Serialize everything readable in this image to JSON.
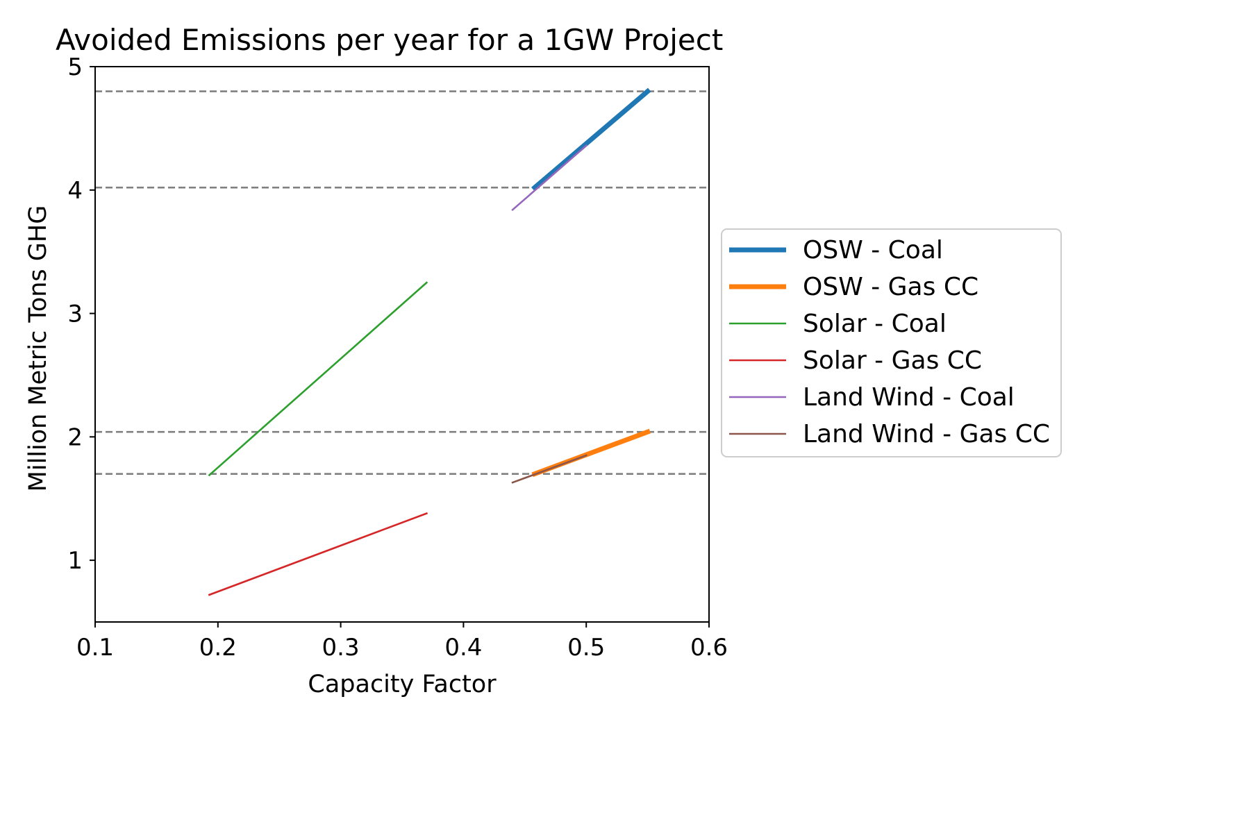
{
  "chart_data": {
    "type": "line",
    "title": "Avoided Emissions per year for a 1GW Project",
    "xlabel": "Capacity Factor",
    "ylabel": "Million Metric Tons GHG",
    "xlim": [
      0.1,
      0.6
    ],
    "ylim": [
      0.5,
      5.0
    ],
    "xticks": [
      0.1,
      0.2,
      0.3,
      0.4,
      0.5,
      0.6
    ],
    "xtick_labels": [
      "0.1",
      "0.2",
      "0.3",
      "0.4",
      "0.5",
      "0.6"
    ],
    "yticks": [
      1,
      2,
      3,
      4,
      5
    ],
    "ytick_labels": [
      "1",
      "2",
      "3",
      "4",
      "5"
    ],
    "grid": false,
    "legend_position": "outside-right",
    "reference_lines": {
      "style": "dashed",
      "color": "#808080",
      "y": [
        4.8,
        4.02,
        2.04,
        1.7
      ]
    },
    "series": [
      {
        "name": "OSW - Coal",
        "color": "#1f77b4",
        "x": [
          0.458,
          0.55
        ],
        "y": [
          4.02,
          4.8
        ],
        "weight": "thick"
      },
      {
        "name": "OSW - Gas CC",
        "color": "#ff7f0e",
        "x": [
          0.458,
          0.55
        ],
        "y": [
          1.7,
          2.04
        ],
        "weight": "thick"
      },
      {
        "name": "Solar - Coal",
        "color": "#2ca02c",
        "x": [
          0.193,
          0.37
        ],
        "y": [
          1.69,
          3.25
        ],
        "weight": "thin"
      },
      {
        "name": "Solar - Gas CC",
        "color": "#d62728",
        "x": [
          0.193,
          0.37
        ],
        "y": [
          0.72,
          1.38
        ],
        "weight": "thin"
      },
      {
        "name": "Land Wind - Coal",
        "color": "#9467bd",
        "x": [
          0.44,
          0.5
        ],
        "y": [
          3.84,
          4.36
        ],
        "weight": "thin"
      },
      {
        "name": "Land Wind - Gas CC",
        "color": "#8c564b",
        "x": [
          0.44,
          0.5
        ],
        "y": [
          1.63,
          1.85
        ],
        "weight": "thin"
      }
    ]
  }
}
